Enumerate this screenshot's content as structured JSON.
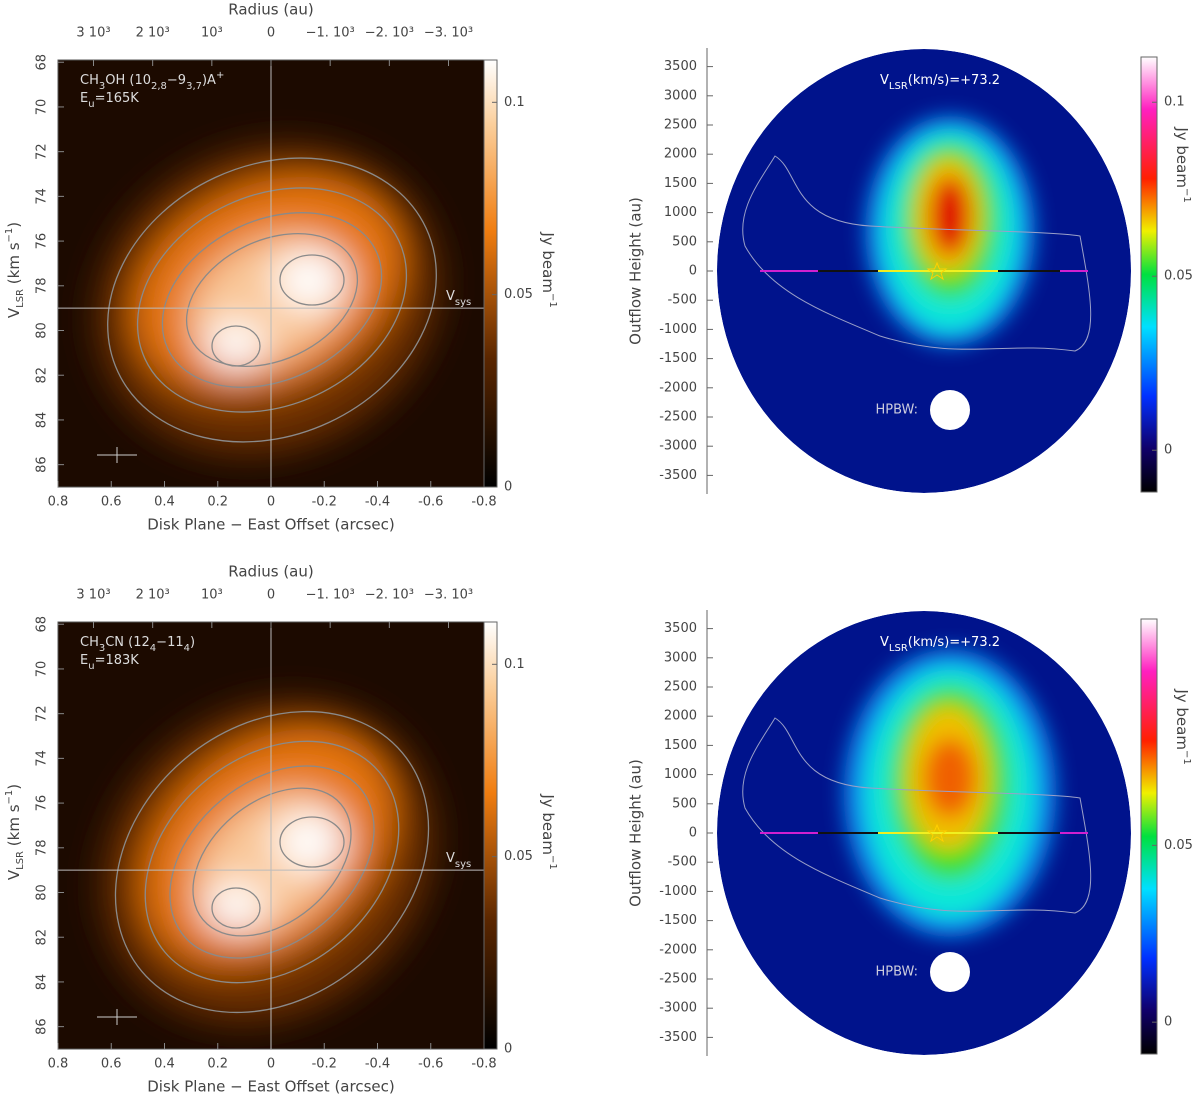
{
  "chart_data": [
    {
      "type": "pv-diagram",
      "annotation": [
        [
          {
            "text": "CH"
          },
          {
            "text": "3",
            "shift": "sub"
          },
          {
            "text": "OH (10"
          },
          {
            "text": "2,8",
            "shift": "sub"
          },
          {
            "text": "−9"
          },
          {
            "text": "3,7",
            "shift": "sub"
          },
          {
            "text": ")A"
          },
          {
            "text": "+",
            "shift": "super"
          }
        ],
        [
          {
            "text": "E"
          },
          {
            "text": "u",
            "shift": "sub"
          },
          {
            "text": "=165K"
          }
        ]
      ],
      "xlabel": "Disk Plane − East Offset (arcsec)",
      "ylabel": [
        {
          "text": "V"
        },
        {
          "text": "LSR",
          "shift": "sub"
        },
        {
          "text": " (km s"
        },
        {
          "text": "−1",
          "shift": "super"
        },
        {
          "text": ")"
        }
      ],
      "x2label": "Radius (au)",
      "xlim": [
        0.8,
        -0.8
      ],
      "xticks": [
        0.8,
        0.6,
        0.4,
        0.2,
        0,
        -0.2,
        -0.4,
        -0.6,
        -0.8
      ],
      "x2lim": [
        3600,
        -3600
      ],
      "x2ticks": [
        {
          "value": 3000,
          "label": "3 10³"
        },
        {
          "value": 2000,
          "label": "2 10³"
        },
        {
          "value": 1000,
          "label": "10³"
        },
        0,
        {
          "value": -1000,
          "label": "−1. 10³"
        },
        {
          "value": -2000,
          "label": "−2. 10³"
        },
        {
          "value": -3000,
          "label": "−3. 10³"
        }
      ],
      "ylim": [
        67.9,
        87
      ],
      "yticks": [
        68,
        70,
        72,
        74,
        76,
        78,
        80,
        82,
        84,
        86
      ],
      "vsys": 79,
      "vsys_label": [
        {
          "text": "V"
        },
        {
          "text": "sys",
          "shift": "sub"
        }
      ],
      "colorbar": {
        "label": [
          {
            "text": "Jy beam"
          },
          {
            "text": "−1",
            "shift": "super"
          }
        ],
        "lim": [
          0,
          0.111
        ],
        "ticks": [
          0,
          0.05,
          0.1
        ]
      }
    },
    {
      "type": "channel-map",
      "annotation": [
        [
          {
            "text": "V"
          },
          {
            "text": "LSR",
            "shift": "sub"
          },
          {
            "text": "(km/s)=+73.2"
          }
        ]
      ],
      "ylabel": "Outflow Height (au)",
      "ylim": [
        -3750,
        3750
      ],
      "yticks": [
        3500,
        3000,
        2500,
        2000,
        1500,
        1000,
        500,
        0,
        -500,
        -1000,
        -1500,
        -2000,
        -2500,
        -3000,
        -3500
      ],
      "beam_label": "HPBW:",
      "colorbar": {
        "label": [
          {
            "text": "Jy beam"
          },
          {
            "text": "−1",
            "shift": "super"
          }
        ],
        "lim": [
          -0.012,
          0.113
        ],
        "ticks": [
          0,
          0.05,
          0.1
        ]
      }
    },
    {
      "type": "pv-diagram",
      "annotation": [
        [
          {
            "text": "CH"
          },
          {
            "text": "3",
            "shift": "sub"
          },
          {
            "text": "CN (12"
          },
          {
            "text": "4",
            "shift": "sub"
          },
          {
            "text": "−11"
          },
          {
            "text": "4",
            "shift": "sub"
          },
          {
            "text": ")"
          }
        ],
        [
          {
            "text": "E"
          },
          {
            "text": "u",
            "shift": "sub"
          },
          {
            "text": "=183K"
          }
        ]
      ],
      "xlabel": "Disk Plane − East Offset (arcsec)",
      "ylabel": [
        {
          "text": "V"
        },
        {
          "text": "LSR",
          "shift": "sub"
        },
        {
          "text": " (km s"
        },
        {
          "text": "−1",
          "shift": "super"
        },
        {
          "text": ")"
        }
      ],
      "x2label": "Radius (au)",
      "xlim": [
        0.8,
        -0.8
      ],
      "xticks": [
        0.8,
        0.6,
        0.4,
        0.2,
        0,
        -0.2,
        -0.4,
        -0.6,
        -0.8
      ],
      "x2lim": [
        3600,
        -3600
      ],
      "x2ticks": [
        {
          "value": 3000,
          "label": "3 10³"
        },
        {
          "value": 2000,
          "label": "2 10³"
        },
        {
          "value": 1000,
          "label": "10³"
        },
        0,
        {
          "value": -1000,
          "label": "−1. 10³"
        },
        {
          "value": -2000,
          "label": "−2. 10³"
        },
        {
          "value": -3000,
          "label": "−3. 10³"
        }
      ],
      "ylim": [
        67.9,
        87
      ],
      "yticks": [
        68,
        70,
        72,
        74,
        76,
        78,
        80,
        82,
        84,
        86
      ],
      "vsys": 79,
      "vsys_label": [
        {
          "text": "V"
        },
        {
          "text": "sys",
          "shift": "sub"
        }
      ],
      "colorbar": {
        "label": [
          {
            "text": "Jy beam"
          },
          {
            "text": "−1",
            "shift": "super"
          }
        ],
        "lim": [
          0,
          0.111
        ],
        "ticks": [
          0,
          0.05,
          0.1
        ]
      }
    },
    {
      "type": "channel-map",
      "annotation": [
        [
          {
            "text": "V"
          },
          {
            "text": "LSR",
            "shift": "sub"
          },
          {
            "text": "(km/s)=+73.2"
          }
        ]
      ],
      "ylabel": "Outflow Height (au)",
      "ylim": [
        -3750,
        3750
      ],
      "yticks": [
        3500,
        3000,
        2500,
        2000,
        1500,
        1000,
        500,
        0,
        -500,
        -1000,
        -1500,
        -2000,
        -2500,
        -3000,
        -3500
      ],
      "beam_label": "HPBW:",
      "colorbar": {
        "label": [
          {
            "text": "Jy beam"
          },
          {
            "text": "−1",
            "shift": "super"
          }
        ],
        "lim": [
          -0.009,
          0.114
        ],
        "ticks": [
          0,
          0.05
        ]
      }
    }
  ]
}
